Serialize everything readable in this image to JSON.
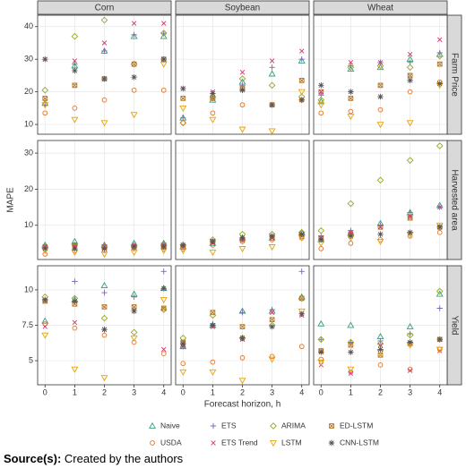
{
  "chart_data": {
    "type": "scatter",
    "x_label": "Forecast horizon, h",
    "y_label": "MAPE",
    "x": [
      0,
      1,
      2,
      3,
      4
    ],
    "xlim": [
      -0.25,
      4.25
    ],
    "xticks": [
      0,
      1,
      2,
      3,
      4
    ],
    "grid": true,
    "columns": [
      "Corn",
      "Soybean",
      "Wheat"
    ],
    "rows": [
      {
        "name": "Farm Price",
        "ylim": [
          7,
          43.5
        ],
        "yticks": [
          10,
          20,
          30,
          40
        ]
      },
      {
        "name": "Harvested area",
        "ylim": [
          0.5,
          33.5
        ],
        "yticks": [
          10,
          20,
          30
        ]
      },
      {
        "name": "Yield",
        "ylim": [
          3.3,
          11.7
        ],
        "yticks": [
          5,
          7.5,
          10
        ]
      }
    ],
    "series": [
      {
        "name": "Naive",
        "color": "#35a07a",
        "marker": "triangle",
        "values": [
          [
            [
              16.5,
              28,
              32.5,
              37,
              37
            ],
            [
              12,
              17.5,
              23,
              25.5,
              29.5
            ],
            [
              17,
              27,
              27.5,
              30,
              31.5
            ]
          ],
          [
            [
              4.5,
              5.5,
              4.5,
              5,
              5
            ],
            [
              4,
              5,
              6.5,
              6.5,
              8
            ],
            [
              6,
              8,
              10.5,
              13.5,
              15.5
            ]
          ],
          [
            [
              7.8,
              9.3,
              10.3,
              9.7,
              10.1
            ],
            [
              6,
              7.5,
              8.5,
              8.5,
              9.5
            ],
            [
              7.6,
              7.5,
              6.7,
              7.4,
              9.7
            ]
          ]
        ]
      },
      {
        "name": "ETS",
        "color": "#7b68b5",
        "marker": "plus",
        "values": [
          [
            [
              16,
              28.5,
              32.5,
              37.5,
              38
            ],
            [
              12,
              18,
              22,
              27.5,
              30
            ],
            [
              19,
              28,
              29,
              29,
              32
            ]
          ],
          [
            [
              4,
              4.5,
              4.5,
              4.5,
              5
            ],
            [
              4,
              5.5,
              6,
              7,
              7.5
            ],
            [
              7,
              8.5,
              10,
              13.5,
              15
            ]
          ],
          [
            [
              9.3,
              10.6,
              9.8,
              9.5,
              11.3
            ],
            [
              6,
              7.6,
              8.4,
              8.6,
              11.3
            ],
            [
              6.5,
              6.3,
              6.4,
              6.9,
              8.7
            ]
          ]
        ]
      },
      {
        "name": "ARIMA",
        "color": "#9aa52a",
        "marker": "diamond",
        "values": [
          [
            [
              20.5,
              37,
              42,
              28.5,
              38
            ],
            [
              10.5,
              18.5,
              24,
              22,
              18.5
            ],
            [
              17.5,
              27.5,
              28,
              27.5,
              31
            ]
          ],
          [
            [
              4,
              4.5,
              4,
              4,
              4.5
            ],
            [
              4.5,
              6,
              7.5,
              7.5,
              8
            ],
            [
              8.5,
              16,
              22.5,
              28,
              32
            ]
          ],
          [
            [
              9.5,
              9.4,
              8,
              7,
              8.6
            ],
            [
              6.6,
              8.2,
              6.6,
              7.5,
              9.4
            ],
            [
              6.5,
              6.3,
              6.2,
              6.8,
              9.9
            ]
          ]
        ]
      },
      {
        "name": "ED-LSTM",
        "color": "#b5762a",
        "marker": "square-x",
        "values": [
          [
            [
              18,
              22,
              24,
              28.5,
              30
            ],
            [
              18,
              18,
              21,
              16,
              23.5
            ],
            [
              20,
              18,
              22,
              25,
              28.5
            ]
          ],
          [
            [
              4,
              4.5,
              4,
              4,
              4
            ],
            [
              4,
              5.5,
              6,
              6.5,
              7
            ],
            [
              6.5,
              7.5,
              9.5,
              12,
              9.5
            ]
          ],
          [
            [
              9.2,
              9,
              8.8,
              8.8,
              8.7
            ],
            [
              6.3,
              8.4,
              7.4,
              7.9,
              9.4
            ],
            [
              5.7,
              6.1,
              5.4,
              6.2,
              6.5
            ]
          ]
        ]
      },
      {
        "name": "USDA",
        "color": "#e0762a",
        "marker": "circle",
        "values": [
          [
            [
              13.5,
              15,
              17.5,
              20.5,
              20.5
            ],
            [
              10.5,
              13.5,
              16,
              16,
              17.5
            ],
            [
              13.5,
              14,
              14.5,
              20,
              23
            ]
          ],
          [
            [
              2,
              3,
              3,
              3.5,
              3.5
            ],
            [
              3.5,
              4.5,
              5.5,
              6,
              6.5
            ],
            [
              3.5,
              5,
              6,
              7,
              8
            ]
          ],
          [
            [
              7.6,
              7.3,
              6.8,
              6.3,
              5.5
            ],
            [
              4.8,
              4.9,
              5.2,
              5.3,
              6
            ],
            [
              5.1,
              4.2,
              4.7,
              4.4,
              5.8
            ]
          ]
        ]
      },
      {
        "name": "ETS Trend",
        "color": "#d6336c",
        "marker": "x",
        "values": [
          [
            [
              30,
              29.5,
              35,
              41,
              41
            ],
            [
              21,
              20,
              26,
              29.5,
              32.5
            ],
            [
              20,
              29,
              29,
              31.5,
              36
            ]
          ],
          [
            [
              4,
              4,
              4,
              4.5,
              4.5
            ],
            [
              4,
              5,
              6,
              6.5,
              7.5
            ],
            [
              6.5,
              8,
              9.5,
              12.5,
              15
            ]
          ],
          [
            [
              7.4,
              7.7,
              7.2,
              8.5,
              5.8
            ],
            [
              6,
              7.4,
              6.5,
              8.4,
              8.2
            ],
            [
              4.7,
              4.1,
              6.1,
              4.3,
              5.7
            ]
          ]
        ]
      },
      {
        "name": "LSTM",
        "color": "#e8a200",
        "marker": "triangle-down",
        "values": [
          [
            [
              16,
              11.5,
              10.5,
              13,
              28.5
            ],
            [
              15,
              11.5,
              8.5,
              8,
              20
            ],
            [
              16,
              12.5,
              10,
              10.5,
              22
            ]
          ],
          [
            [
              3,
              2.5,
              2,
              2.5,
              3
            ],
            [
              3,
              2.5,
              3.5,
              4,
              6.5
            ],
            [
              5,
              6.5,
              5.5,
              7.5,
              10
            ]
          ],
          [
            [
              6.8,
              4.4,
              3.8,
              6.6,
              9.3
            ],
            [
              4.2,
              4.2,
              3.6,
              5.1,
              8.5
            ],
            [
              4.9,
              4.4,
              5.6,
              6.1,
              5.8
            ]
          ]
        ]
      },
      {
        "name": "CNN-LSTM",
        "color": "#555555",
        "marker": "asterisk",
        "values": [
          [
            [
              30,
              26.5,
              24,
              24.5,
              30
            ],
            [
              21,
              19.5,
              20.5,
              16,
              17.5
            ],
            [
              22,
              20,
              18.5,
              23.5,
              22.5
            ]
          ],
          [
            [
              3.5,
              3.5,
              3.5,
              4,
              4
            ],
            [
              4.5,
              5.5,
              6.5,
              7,
              7.5
            ],
            [
              6,
              7,
              7.5,
              8,
              9.5
            ]
          ],
          [
            [
              9.3,
              9.2,
              7.2,
              8.5,
              10.1
            ],
            [
              6.2,
              7.5,
              6.6,
              7.4,
              8.3
            ],
            [
              5.6,
              5.6,
              5.8,
              6.3,
              6.5
            ]
          ]
        ]
      }
    ]
  },
  "caption": {
    "label": "Source(s):",
    "text": "Created by the authors"
  }
}
